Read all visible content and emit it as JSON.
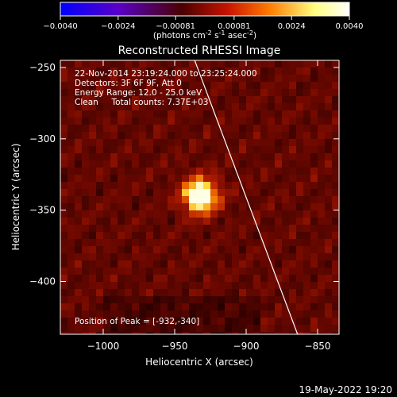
{
  "chart_data": {
    "type": "heatmap",
    "title": "Reconstructed RHESSI Image",
    "colorbar": {
      "ticks": [
        "-0.0040",
        "-0.0024",
        "-0.00081",
        "0.00081",
        "0.0024",
        "0.0040"
      ],
      "range": [
        -0.004,
        0.004
      ],
      "label_main": "(photons cm",
      "label_exp1": "-2",
      "label_mid1": " s",
      "label_exp2": "-1",
      "label_mid2": " asec",
      "label_exp3": "-2",
      "label_end": ")",
      "colormap": [
        "#0000ff",
        "#5a00c8",
        "#4a0000",
        "#c81400",
        "#ff7800",
        "#ffff80",
        "#ffffff"
      ]
    },
    "xlabel": "Heliocentric X (arcsec)",
    "ylabel": "Heliocentric Y (arcsec)",
    "xlim": [
      -1030,
      -835
    ],
    "ylim": [
      -437,
      -245
    ],
    "xticks": [
      -1000,
      -950,
      -900,
      -850
    ],
    "yticks": [
      -250,
      -300,
      -350,
      -400
    ],
    "xtick_labels": [
      "−1000",
      "−950",
      "−900",
      "−850"
    ],
    "ytick_labels": [
      "−250",
      "−300",
      "−350",
      "−400"
    ],
    "info_lines": [
      "22-Nov-2014 23:19:24.000 to 23:25:24.000",
      "Detectors: 3F 6F 9F, Att 0",
      "Energy Range: 12.0 - 25.0 keV",
      "Clean     Total counts: 7.37E+03"
    ],
    "peak_text": "Position of Peak = [-932,-340]",
    "peak": {
      "x": -932,
      "y": -340
    },
    "limb": {
      "x": [
        -936,
        -864
      ],
      "y": [
        -245,
        -437
      ]
    }
  },
  "footer": {
    "timestamp": "19-May-2022 19:20"
  }
}
